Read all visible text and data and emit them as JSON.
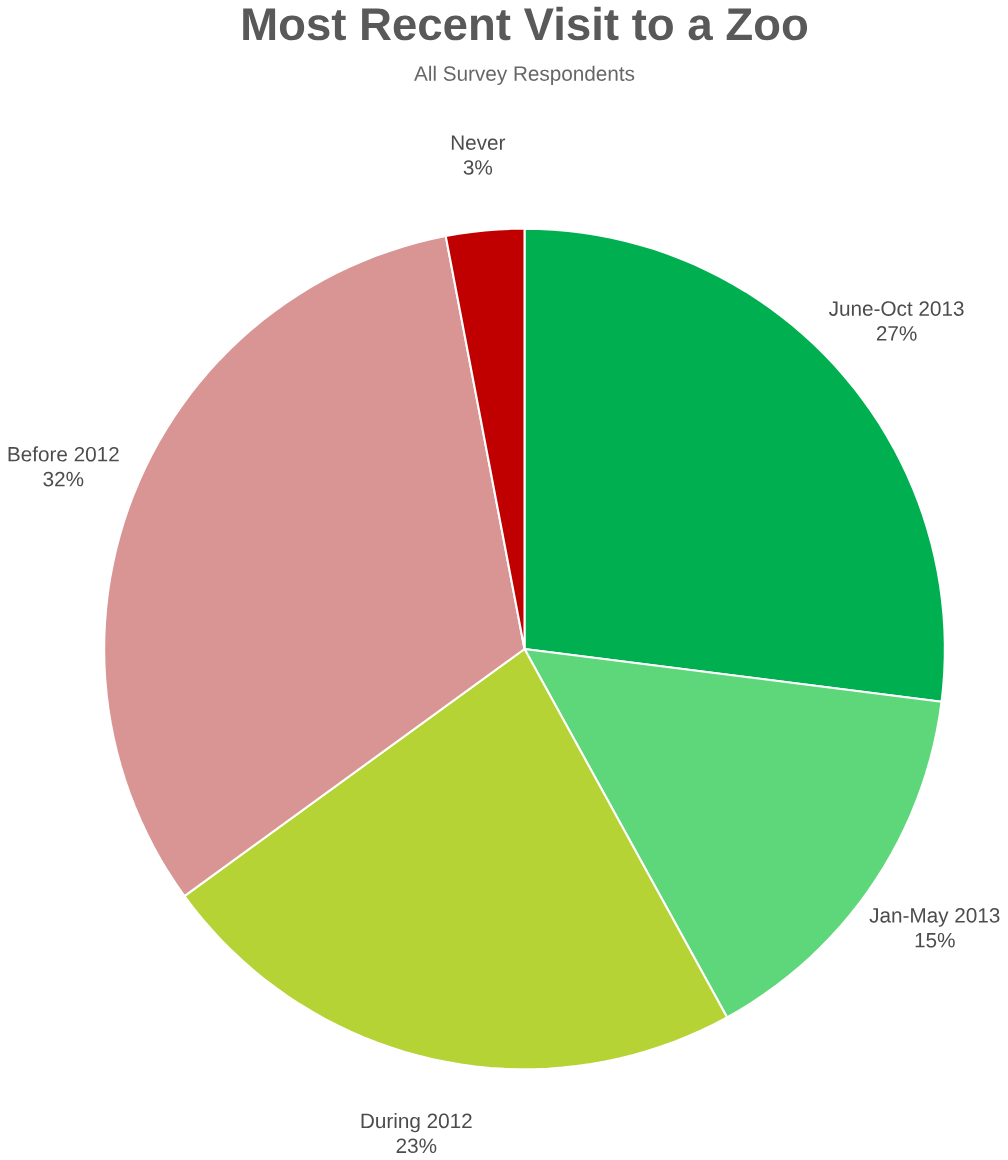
{
  "chart_data": {
    "type": "pie",
    "title": "Most Recent Visit to a Zoo",
    "subtitle": "All Survey Respondents",
    "categories": [
      "June-Oct 2013",
      "Jan-May 2013",
      "During 2012",
      "Before 2012",
      "Never"
    ],
    "values": [
      27,
      15,
      23,
      32,
      3
    ],
    "value_labels": [
      "27%",
      "15%",
      "23%",
      "32%",
      "3%"
    ],
    "colors": [
      "#00b050",
      "#5ed77a",
      "#b5d334",
      "#d99594",
      "#c00000"
    ]
  }
}
